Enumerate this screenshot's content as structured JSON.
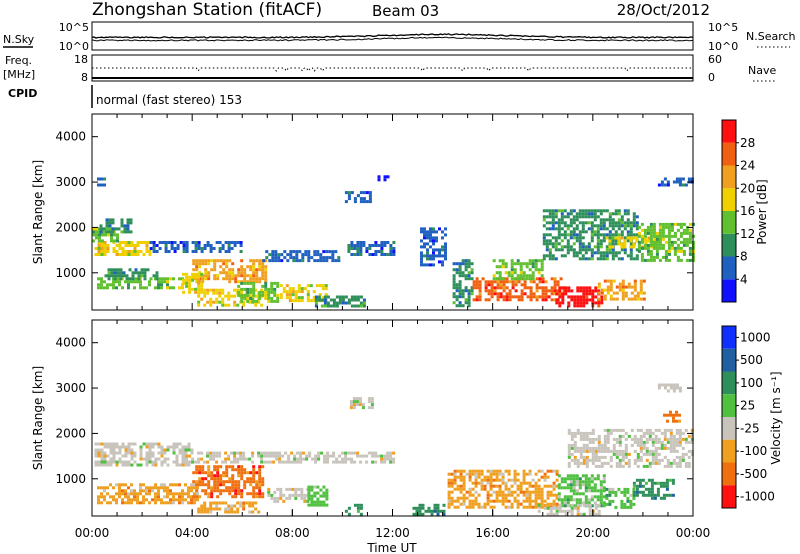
{
  "header": {
    "title": "Zhongshan Station (fitACF)",
    "beam": "Beam 03",
    "date": "28/Oct/2012"
  },
  "summary_panels": {
    "nsky_label": "N.Sky",
    "nsky_ticks": [
      "10^5",
      "10^0"
    ],
    "nsearch_label": "N.Search",
    "nsearch_ticks": [
      "10^5",
      "10^0"
    ],
    "freq_label": "Freq.",
    "freq_unit": "[MHz]",
    "freq_ticks": [
      "18",
      "8"
    ],
    "nave_label": "Nave",
    "nave_ticks": [
      "60",
      "0"
    ],
    "cpid_label": "CPID",
    "cpid_text": "normal (fast stereo) 153"
  },
  "chart_data": [
    {
      "type": "heatmap",
      "name": "power",
      "xlabel": "",
      "ylabel": "Slant Range [km]",
      "ylim": [
        180,
        4500
      ],
      "yticks": [
        "1000",
        "2000",
        "3000",
        "4000"
      ],
      "xlim_hours": [
        0,
        24
      ],
      "colorbar": {
        "label": "Power [dB]",
        "ticks": [
          "4",
          "8",
          "12",
          "16",
          "20",
          "24",
          "28"
        ],
        "colors": [
          "#1010ff",
          "#2060c0",
          "#2f8f5a",
          "#60c030",
          "#f0d000",
          "#f0a020",
          "#f06010",
          "#ff1010"
        ]
      },
      "blocks": [
        {
          "t0": 0.1,
          "t1": 2.3,
          "r0": 1400,
          "r1": 1700,
          "level": 4
        },
        {
          "t0": 0.0,
          "t1": 1.0,
          "r0": 1700,
          "r1": 2000,
          "level": 3
        },
        {
          "t0": 0.3,
          "t1": 1.5,
          "r0": 1900,
          "r1": 2200,
          "level": 2
        },
        {
          "t0": 0.2,
          "t1": 0.5,
          "r0": 2950,
          "r1": 3100,
          "level": 1
        },
        {
          "t0": 0.2,
          "t1": 3.6,
          "r0": 650,
          "r1": 900,
          "level": 3
        },
        {
          "t0": 0.5,
          "t1": 2.6,
          "r0": 900,
          "r1": 1100,
          "level": 2
        },
        {
          "t0": 2.3,
          "t1": 6.0,
          "r0": 1500,
          "r1": 1700,
          "level": 1
        },
        {
          "t0": 4.0,
          "t1": 6.9,
          "r0": 800,
          "r1": 1300,
          "level": 5
        },
        {
          "t0": 3.6,
          "t1": 4.4,
          "r0": 600,
          "r1": 1000,
          "level": 4
        },
        {
          "t0": 4.2,
          "t1": 6.8,
          "r0": 300,
          "r1": 650,
          "level": 4
        },
        {
          "t0": 5.8,
          "t1": 7.4,
          "r0": 350,
          "r1": 800,
          "level": 3
        },
        {
          "t0": 7.5,
          "t1": 9.3,
          "r0": 400,
          "r1": 750,
          "level": 4
        },
        {
          "t0": 6.8,
          "t1": 10.0,
          "r0": 1300,
          "r1": 1500,
          "level": 1
        },
        {
          "t0": 8.9,
          "t1": 10.9,
          "r0": 250,
          "r1": 500,
          "level": 2
        },
        {
          "t0": 10.2,
          "t1": 12.0,
          "r0": 1400,
          "r1": 1700,
          "level": 1
        },
        {
          "t0": 10.1,
          "t1": 11.1,
          "r0": 2600,
          "r1": 2800,
          "level": 1
        },
        {
          "t0": 11.4,
          "t1": 11.8,
          "r0": 3050,
          "r1": 3150,
          "level": 0
        },
        {
          "t0": 13.1,
          "t1": 14.1,
          "r0": 1200,
          "r1": 2000,
          "level": 1
        },
        {
          "t0": 14.4,
          "t1": 15.2,
          "r0": 300,
          "r1": 1300,
          "level": 2
        },
        {
          "t0": 15.2,
          "t1": 18.8,
          "r0": 400,
          "r1": 900,
          "level": 6
        },
        {
          "t0": 16.0,
          "t1": 18.0,
          "r0": 900,
          "r1": 1300,
          "level": 3
        },
        {
          "t0": 18.0,
          "t1": 21.8,
          "r0": 1300,
          "r1": 2400,
          "level": 2
        },
        {
          "t0": 18.5,
          "t1": 20.3,
          "r0": 300,
          "r1": 700,
          "level": 7
        },
        {
          "t0": 20.2,
          "t1": 22.0,
          "r0": 450,
          "r1": 850,
          "level": 5
        },
        {
          "t0": 20.5,
          "t1": 22.6,
          "r0": 1600,
          "r1": 1800,
          "level": 4
        },
        {
          "t0": 21.8,
          "t1": 24.0,
          "r0": 1300,
          "r1": 2100,
          "level": 3
        },
        {
          "t0": 22.6,
          "t1": 24.0,
          "r0": 2950,
          "r1": 3100,
          "level": 1
        }
      ]
    },
    {
      "type": "heatmap",
      "name": "velocity",
      "xlabel": "Time UT",
      "ylabel": "Slant Range [km]",
      "ylim": [
        180,
        4500
      ],
      "yticks": [
        "1000",
        "2000",
        "3000",
        "4000"
      ],
      "xticks": [
        "00:00",
        "04:00",
        "08:00",
        "12:00",
        "16:00",
        "20:00",
        "00:00"
      ],
      "xlim_hours": [
        0,
        24
      ],
      "colorbar": {
        "label": "Velocity [m s⁻¹]",
        "ticks": [
          "1000",
          "500",
          "100",
          "25",
          "-25",
          "-100",
          "-500",
          "-1000"
        ],
        "colors": [
          "#1030ff",
          "#2060a0",
          "#2f8f5a",
          "#50c040",
          "#c8c4bc",
          "#f0a020",
          "#f07010",
          "#ff1010"
        ]
      },
      "blocks": [
        {
          "t0": 0.1,
          "t1": 4.0,
          "r0": 1300,
          "r1": 1800,
          "level": 4
        },
        {
          "t0": 3.6,
          "t1": 12.0,
          "r0": 1400,
          "r1": 1600,
          "level": 4
        },
        {
          "t0": 0.2,
          "t1": 4.2,
          "r0": 450,
          "r1": 900,
          "level": 5
        },
        {
          "t0": 4.0,
          "t1": 6.8,
          "r0": 600,
          "r1": 1300,
          "level": 6
        },
        {
          "t0": 4.2,
          "t1": 6.6,
          "r0": 250,
          "r1": 500,
          "level": 5
        },
        {
          "t0": 7.0,
          "t1": 8.6,
          "r0": 500,
          "r1": 800,
          "level": 4
        },
        {
          "t0": 8.6,
          "t1": 9.4,
          "r0": 450,
          "r1": 850,
          "level": 3
        },
        {
          "t0": 10.3,
          "t1": 11.2,
          "r0": 2600,
          "r1": 2800,
          "level": 4
        },
        {
          "t0": 10.1,
          "t1": 10.7,
          "r0": 250,
          "r1": 450,
          "level": 2
        },
        {
          "t0": 12.8,
          "t1": 14.0,
          "r0": 250,
          "r1": 450,
          "level": 2
        },
        {
          "t0": 14.2,
          "t1": 18.6,
          "r0": 400,
          "r1": 1200,
          "level": 5
        },
        {
          "t0": 18.6,
          "t1": 20.5,
          "r0": 400,
          "r1": 1100,
          "level": 3
        },
        {
          "t0": 20.5,
          "t1": 21.6,
          "r0": 400,
          "r1": 800,
          "level": 3
        },
        {
          "t0": 17.8,
          "t1": 20.2,
          "r0": 250,
          "r1": 450,
          "level": 4
        },
        {
          "t0": 19.0,
          "t1": 24.0,
          "r0": 1300,
          "r1": 2100,
          "level": 4
        },
        {
          "t0": 22.6,
          "t1": 23.5,
          "r0": 2950,
          "r1": 3100,
          "level": 4
        },
        {
          "t0": 21.6,
          "t1": 23.2,
          "r0": 600,
          "r1": 1000,
          "level": 2
        },
        {
          "t0": 22.8,
          "t1": 23.4,
          "r0": 2300,
          "r1": 2500,
          "level": 6
        }
      ]
    }
  ]
}
